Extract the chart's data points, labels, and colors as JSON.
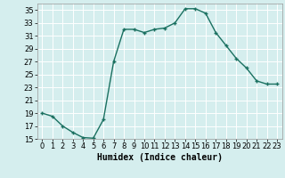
{
  "x": [
    0,
    1,
    2,
    3,
    4,
    5,
    6,
    7,
    8,
    9,
    10,
    11,
    12,
    13,
    14,
    15,
    16,
    17,
    18,
    19,
    20,
    21,
    22,
    23
  ],
  "y": [
    19,
    18.5,
    17,
    16,
    15.2,
    15.1,
    18,
    27,
    32,
    32,
    31.5,
    32,
    32.2,
    33,
    35.2,
    35.2,
    34.5,
    31.5,
    29.5,
    27.5,
    26,
    24,
    23.5,
    23.5
  ],
  "line_color": "#1a7060",
  "marker": "+",
  "bg_color": "#d5eeee",
  "grid_color": "#b8d8d8",
  "xlabel": "Humidex (Indice chaleur)",
  "ylim": [
    15,
    36
  ],
  "xlim": [
    -0.5,
    23.5
  ],
  "yticks": [
    15,
    17,
    19,
    21,
    23,
    25,
    27,
    29,
    31,
    33,
    35
  ],
  "xticks": [
    0,
    1,
    2,
    3,
    4,
    5,
    6,
    7,
    8,
    9,
    10,
    11,
    12,
    13,
    14,
    15,
    16,
    17,
    18,
    19,
    20,
    21,
    22,
    23
  ],
  "label_fontsize": 7,
  "tick_fontsize": 6,
  "marker_size": 3,
  "linewidth": 1.0
}
